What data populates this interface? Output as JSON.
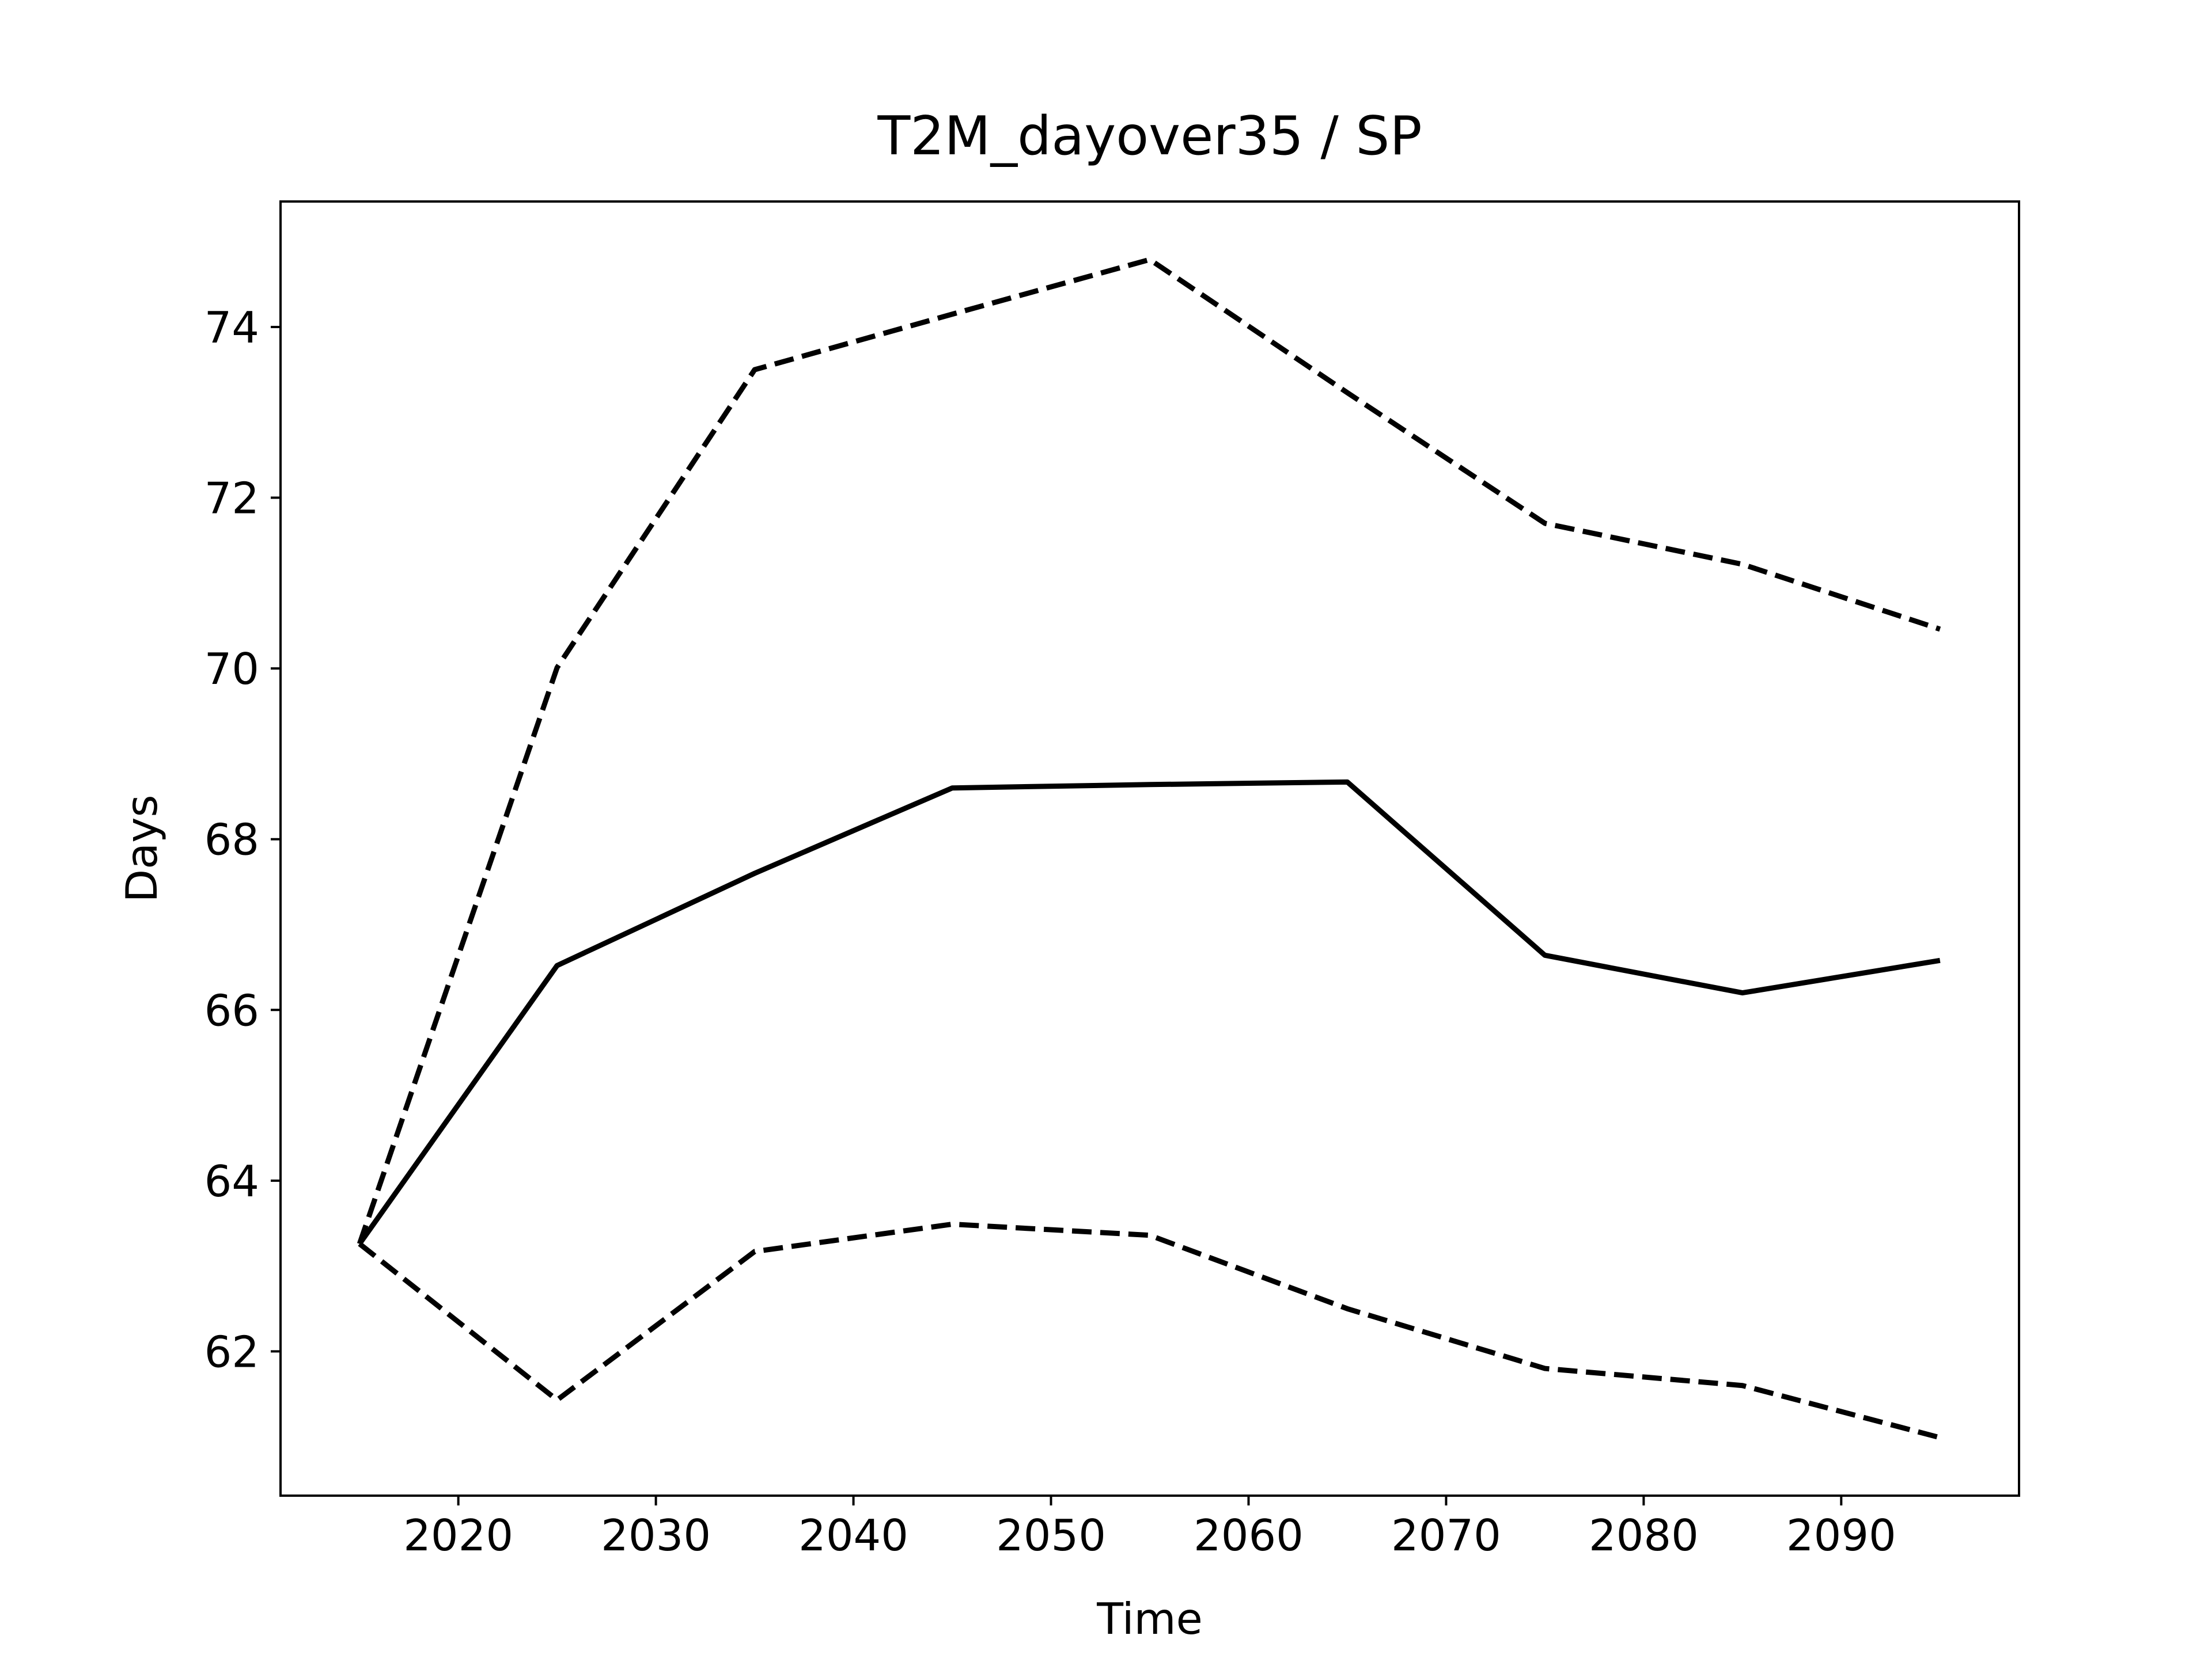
{
  "chart_data": {
    "type": "line",
    "title": "T2M_dayover35 / SP",
    "xlabel": "Time",
    "ylabel": "Days",
    "x": [
      2015,
      2025,
      2035,
      2045,
      2055,
      2065,
      2075,
      2085,
      2095
    ],
    "series": [
      {
        "color": "#000000",
        "linestyle": "solid",
        "values": [
          63.26,
          66.52,
          67.6,
          68.6,
          68.64,
          68.67,
          66.64,
          66.2,
          66.58
        ]
      },
      {
        "color": "#000000",
        "linestyle": "dashed",
        "values": [
          63.26,
          70.01,
          73.5,
          74.15,
          74.79,
          73.23,
          71.7,
          71.22,
          70.46
        ]
      },
      {
        "color": "#000000",
        "linestyle": "dashed",
        "values": [
          63.26,
          61.43,
          63.17,
          63.49,
          63.36,
          62.5,
          61.8,
          61.6,
          60.99
        ]
      }
    ],
    "xlim": [
      2011,
      2099
    ],
    "xticks": [
      2020,
      2030,
      2040,
      2050,
      2060,
      2070,
      2080,
      2090
    ],
    "ylim": [
      60.31,
      75.47
    ],
    "yticks": [
      62,
      64,
      66,
      68,
      70,
      72,
      74
    ],
    "grid": false
  }
}
